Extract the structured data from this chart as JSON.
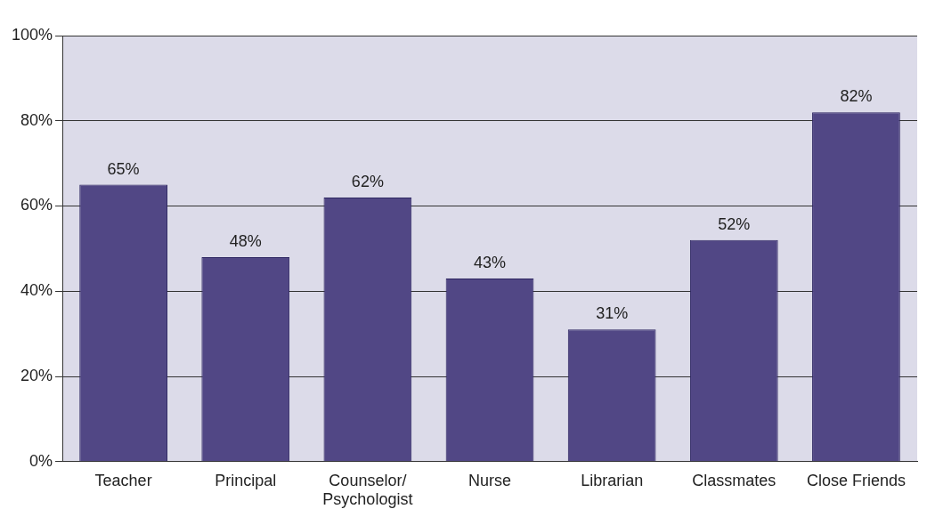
{
  "chart_data": {
    "type": "bar",
    "categories": [
      "Teacher",
      "Principal",
      "Counselor/\nPsychologist",
      "Nurse",
      "Librarian",
      "Classmates",
      "Close Friends"
    ],
    "values": [
      65,
      48,
      62,
      43,
      31,
      52,
      82
    ],
    "value_labels": [
      "65%",
      "48%",
      "62%",
      "43%",
      "31%",
      "52%",
      "82%"
    ],
    "color": "#514785",
    "ylim": [
      0,
      100
    ],
    "yticks": [
      {
        "value": 0,
        "label": "0%"
      },
      {
        "value": 20,
        "label": "20%"
      },
      {
        "value": 40,
        "label": "40%"
      },
      {
        "value": 60,
        "label": "60%"
      },
      {
        "value": 80,
        "label": "80%"
      },
      {
        "value": 100,
        "label": "100%"
      }
    ],
    "grid": "y"
  }
}
